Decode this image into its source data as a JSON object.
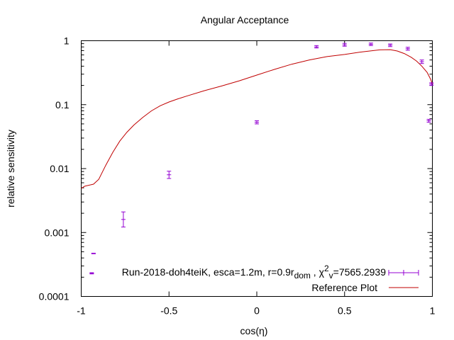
{
  "chart_data": {
    "type": "scatter",
    "title": "Angular Acceptance",
    "xlabel": "cos(η)",
    "ylabel": "relative sensitivity",
    "xlim": [
      -1,
      1
    ],
    "ylim": [
      0.0001,
      1
    ],
    "yscale": "log",
    "grid": false,
    "legend_position": "bottom-right",
    "x_ticks": [
      {
        "value": -1,
        "label": "-1"
      },
      {
        "value": -0.5,
        "label": "-0.5"
      },
      {
        "value": 0,
        "label": "0"
      },
      {
        "value": 0.5,
        "label": "0.5"
      },
      {
        "value": 1,
        "label": "1"
      }
    ],
    "y_ticks": [
      {
        "value": 0.0001,
        "label": "0.0001"
      },
      {
        "value": 0.001,
        "label": "0.001"
      },
      {
        "value": 0.01,
        "label": "0.01"
      },
      {
        "value": 0.1,
        "label": "0.1"
      },
      {
        "value": 1,
        "label": "1"
      }
    ],
    "series": [
      {
        "name": "Run-2018-doh4teiK, esca=1.2m, r=0.9r_dom , χ²_v=7565.2939",
        "legend_parts": {
          "main": "Run-2018-doh4teiK, esca=1.2m, r=0.9r",
          "sub1": "dom",
          "mid": " , χ",
          "sup": "2",
          "sub2": "v",
          "end": "=7565.2939"
        },
        "kind": "errorbars",
        "color": "#9400d3",
        "points": [
          {
            "x": -0.94,
            "y": 0.00023,
            "lo": 0.000225,
            "hi": 0.000235
          },
          {
            "x": -0.93,
            "y": 0.00047,
            "lo": 0.000465,
            "hi": 0.000475
          },
          {
            "x": -0.76,
            "y": 0.0016,
            "lo": 0.00122,
            "hi": 0.0021
          },
          {
            "x": -0.5,
            "y": 0.008,
            "lo": 0.007,
            "hi": 0.0091
          },
          {
            "x": 0.0,
            "y": 0.053,
            "lo": 0.05,
            "hi": 0.056
          },
          {
            "x": 0.34,
            "y": 0.8,
            "lo": 0.77,
            "hi": 0.84
          },
          {
            "x": 0.5,
            "y": 0.86,
            "lo": 0.82,
            "hi": 0.91
          },
          {
            "x": 0.65,
            "y": 0.88,
            "lo": 0.84,
            "hi": 0.92
          },
          {
            "x": 0.76,
            "y": 0.85,
            "lo": 0.81,
            "hi": 0.89
          },
          {
            "x": 0.86,
            "y": 0.75,
            "lo": 0.71,
            "hi": 0.79
          },
          {
            "x": 0.94,
            "y": 0.47,
            "lo": 0.44,
            "hi": 0.5
          },
          {
            "x": 0.98,
            "y": 0.056,
            "lo": 0.053,
            "hi": 0.059
          },
          {
            "x": 0.995,
            "y": 0.21,
            "lo": 0.2,
            "hi": 0.22
          }
        ]
      },
      {
        "name": "Reference Plot",
        "kind": "line",
        "color": "#c00000",
        "points": [
          {
            "x": -1.0,
            "y": 0.0049
          },
          {
            "x": -0.98,
            "y": 0.0053
          },
          {
            "x": -0.93,
            "y": 0.0057
          },
          {
            "x": -0.9,
            "y": 0.0068
          },
          {
            "x": -0.86,
            "y": 0.0113
          },
          {
            "x": -0.82,
            "y": 0.018
          },
          {
            "x": -0.78,
            "y": 0.027
          },
          {
            "x": -0.74,
            "y": 0.037
          },
          {
            "x": -0.7,
            "y": 0.048
          },
          {
            "x": -0.65,
            "y": 0.063
          },
          {
            "x": -0.6,
            "y": 0.08
          },
          {
            "x": -0.55,
            "y": 0.096
          },
          {
            "x": -0.5,
            "y": 0.11
          },
          {
            "x": -0.45,
            "y": 0.123
          },
          {
            "x": -0.4,
            "y": 0.136
          },
          {
            "x": -0.3,
            "y": 0.165
          },
          {
            "x": -0.2,
            "y": 0.196
          },
          {
            "x": -0.1,
            "y": 0.236
          },
          {
            "x": 0.0,
            "y": 0.29
          },
          {
            "x": 0.1,
            "y": 0.356
          },
          {
            "x": 0.2,
            "y": 0.43
          },
          {
            "x": 0.3,
            "y": 0.5
          },
          {
            "x": 0.4,
            "y": 0.565
          },
          {
            "x": 0.5,
            "y": 0.61
          },
          {
            "x": 0.6,
            "y": 0.67
          },
          {
            "x": 0.7,
            "y": 0.72
          },
          {
            "x": 0.76,
            "y": 0.725
          },
          {
            "x": 0.8,
            "y": 0.69
          },
          {
            "x": 0.84,
            "y": 0.63
          },
          {
            "x": 0.88,
            "y": 0.55
          },
          {
            "x": 0.91,
            "y": 0.48
          },
          {
            "x": 0.94,
            "y": 0.4
          },
          {
            "x": 0.97,
            "y": 0.32
          },
          {
            "x": 0.99,
            "y": 0.25
          },
          {
            "x": 1.0,
            "y": 0.21
          }
        ]
      }
    ]
  }
}
